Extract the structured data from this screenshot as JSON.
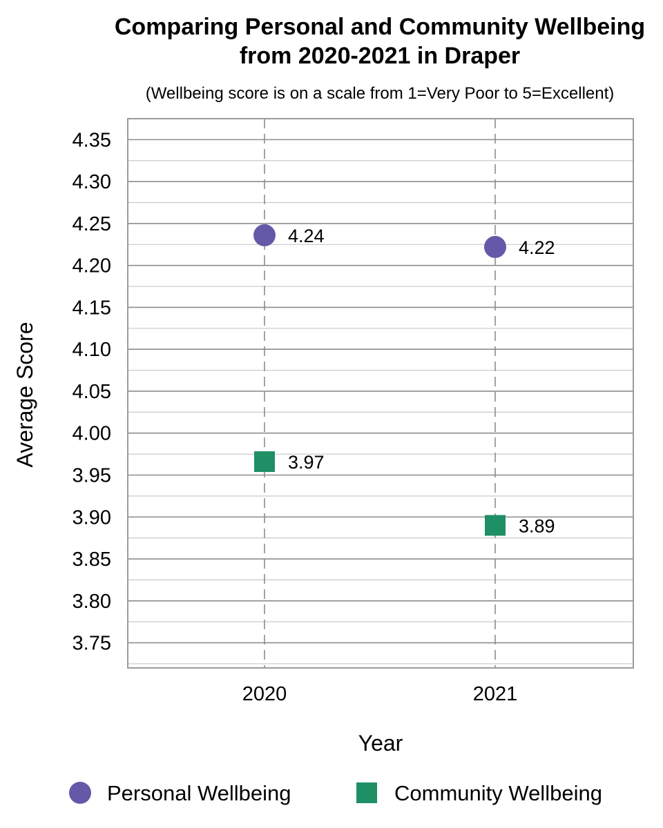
{
  "chart_data": {
    "type": "scatter",
    "title_line1": "Comparing Personal and Community Wellbeing",
    "title_line2": "from 2020-2021 in Draper",
    "subtitle": "(Wellbeing score is on a scale from 1=Very Poor to 5=Excellent)",
    "xlabel": "Year",
    "ylabel": "Average Score",
    "categories": [
      "2020",
      "2021"
    ],
    "ylim": [
      3.72,
      4.375
    ],
    "yticks": [
      "4.35",
      "4.30",
      "4.25",
      "4.20",
      "4.15",
      "4.10",
      "4.05",
      "4.00",
      "3.95",
      "3.90",
      "3.85",
      "3.80",
      "3.75"
    ],
    "grid": true,
    "legend_position": "bottom",
    "series": [
      {
        "name": "Personal Wellbeing",
        "marker": "circle",
        "color": "#6459a8",
        "values": [
          4.236,
          4.222
        ],
        "labels": [
          "4.24",
          "4.22"
        ]
      },
      {
        "name": "Community Wellbeing",
        "marker": "square",
        "color": "#1f8f66",
        "values": [
          3.966,
          3.89
        ],
        "labels": [
          "3.97",
          "3.89"
        ]
      }
    ]
  }
}
